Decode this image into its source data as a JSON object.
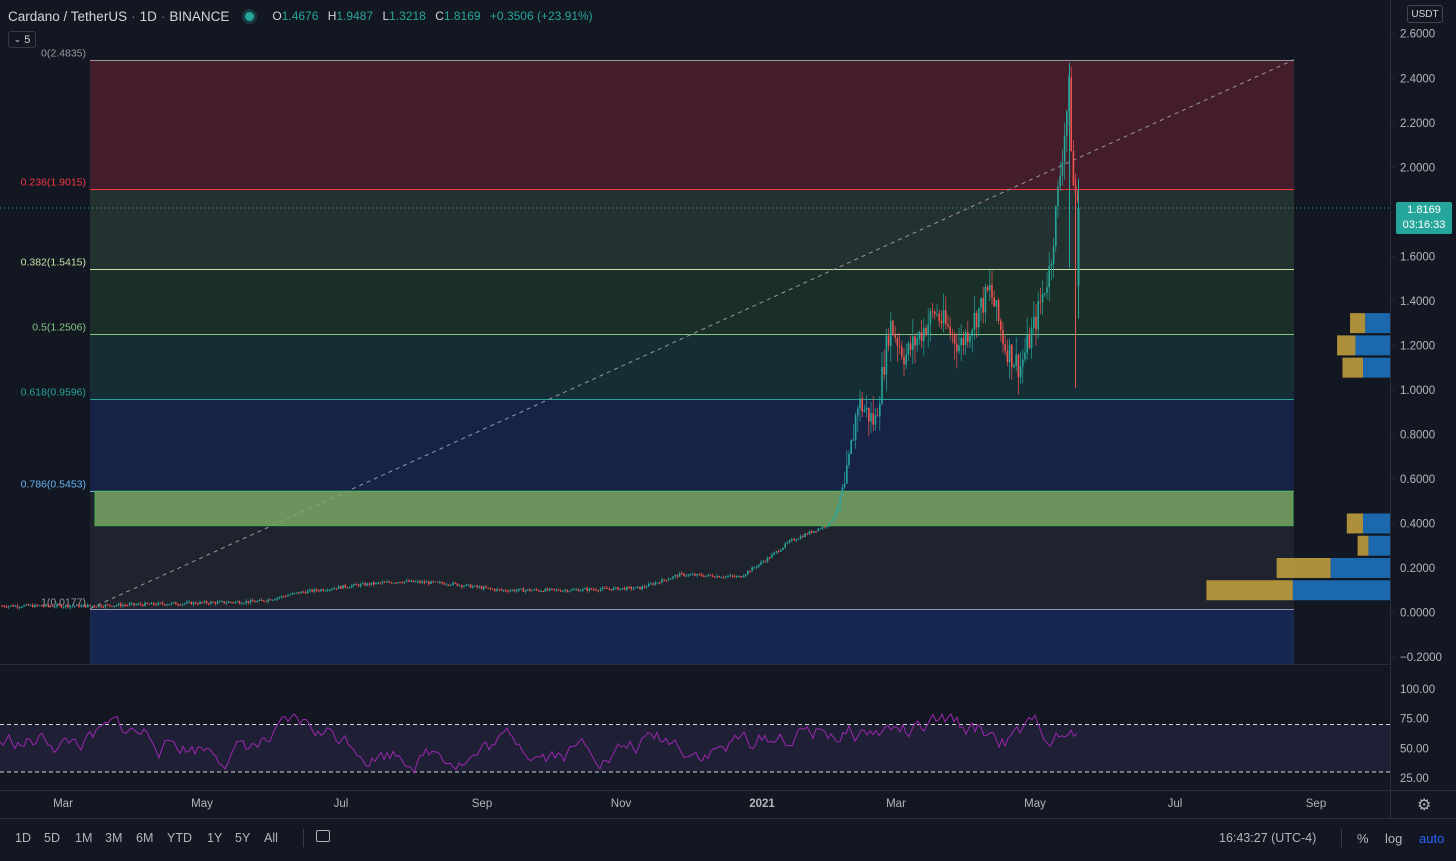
{
  "header": {
    "symbol": "Cardano / TetherUS",
    "interval": "1D",
    "exchange": "BINANCE",
    "ohlc": {
      "o_label": "O",
      "o": "1.4676",
      "h_label": "H",
      "h": "1.9487",
      "l_label": "L",
      "l": "1.3218",
      "c_label": "C",
      "c": "1.8169",
      "change": "+0.3506 (+23.91%)"
    },
    "toggle_label": "5",
    "currency": "USDT"
  },
  "price_tag": {
    "price": "1.8169",
    "countdown": "03:16:33"
  },
  "fibonacci": [
    {
      "label": "0(2.4835)",
      "value": 2.4835,
      "color": "#9598a1"
    },
    {
      "label": "0.236(1.9015)",
      "value": 1.9015,
      "color": "#f23645"
    },
    {
      "label": "0.382(1.5415)",
      "value": 1.5415,
      "color": "#c5e1a5"
    },
    {
      "label": "0.5(1.2506)",
      "value": 1.2506,
      "color": "#81c784"
    },
    {
      "label": "0.618(0.9596)",
      "value": 0.9596,
      "color": "#26a69a"
    },
    {
      "label": "0.786(0.5453)",
      "value": 0.5453,
      "color": "#64b5f6"
    },
    {
      "label": "1(0.0177)",
      "value": 0.0177,
      "color": "#9598a1"
    }
  ],
  "zone": {
    "top": 0.545,
    "bottom": 0.39,
    "color": "#7fae6a"
  },
  "price_axis": [
    "2.6000",
    "2.4000",
    "2.2000",
    "2.0000",
    "1.8000",
    "1.6000",
    "1.4000",
    "1.2000",
    "1.0000",
    "0.8000",
    "0.6000",
    "0.4000",
    "0.2000",
    "0.0000",
    "−0.2000"
  ],
  "rsi_axis": [
    "100.00",
    "75.00",
    "50.00",
    "25.00"
  ],
  "time_axis": [
    "Mar",
    "May",
    "Jul",
    "Sep",
    "Nov",
    "2021",
    "Mar",
    "May",
    "Jul",
    "Sep"
  ],
  "volume_profile": [
    {
      "price": 1.3,
      "up": 0.28,
      "down": 0.46
    },
    {
      "price": 1.2,
      "up": 0.34,
      "down": 0.64
    },
    {
      "price": 1.1,
      "up": 0.38,
      "down": 0.5
    },
    {
      "price": 0.4,
      "up": 0.3,
      "down": 0.5
    },
    {
      "price": 0.3,
      "up": 0.2,
      "down": 0.4
    },
    {
      "price": 0.2,
      "up": 1.0,
      "down": 1.1
    },
    {
      "price": 0.1,
      "up": 1.6,
      "down": 1.8
    }
  ],
  "colors": {
    "up": "#26a69a",
    "down": "#ef5350",
    "rsi": "#9c27b0",
    "vol_up": "#c9a33e",
    "vol_down": "#1f77c4"
  },
  "bottom_bar": {
    "timeframes": [
      "1D",
      "5D",
      "1M",
      "3M",
      "6M",
      "YTD",
      "1Y",
      "5Y",
      "All"
    ],
    "clock": "16:43:27 (UTC-4)",
    "percent": "%",
    "log": "log",
    "auto": "auto"
  }
}
